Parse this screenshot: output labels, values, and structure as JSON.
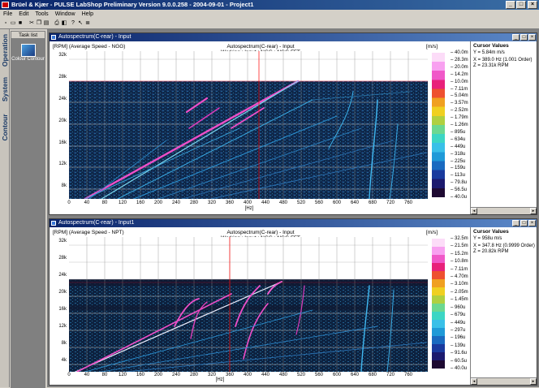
{
  "app": {
    "title": "Brüel & Kjær - PULSE LabShop Preliminary Version 9.0.0.258 - 2004-09-01 - Project1",
    "window_buttons": [
      "_",
      "□",
      "×"
    ]
  },
  "menu": [
    "File",
    "Edit",
    "Tools",
    "Window",
    "Help"
  ],
  "toolbar_icons": [
    "new-icon",
    "open-icon",
    "save-icon",
    "cut-icon",
    "copy-icon",
    "paste-icon",
    "print-icon",
    "print-preview-icon",
    "help-icon",
    "context-help-icon",
    "settings-icon"
  ],
  "left_tabs": [
    "Operation",
    "System",
    "Contour"
  ],
  "task_list": {
    "header": "Task list",
    "item_label": "Colour Contour"
  },
  "colorscale": [
    "#1e0a32",
    "#1c1a6e",
    "#1a3a9e",
    "#1a6ac0",
    "#1f9ad8",
    "#39c0e8",
    "#3cd6c4",
    "#6cd890",
    "#b0d040",
    "#f0d020",
    "#f0a020",
    "#ee5030",
    "#e8207a",
    "#f058c8",
    "#f8a0f0",
    "#fcdcf8"
  ],
  "windows": [
    {
      "title": "Autospectrum(C-rear) - Input",
      "header_left": "[RPM] (Average Speed - NGG)",
      "header_center_1": "Autospectrum(C-rear) - Input",
      "header_center_2": "Working : Input : NGG : NGG FFT",
      "unit": "[m/s]",
      "y_ticks": [
        "32k",
        "28k",
        "24k",
        "20k",
        "16k",
        "12k",
        "8k"
      ],
      "x_ticks": [
        "0",
        "40",
        "80",
        "120",
        "160",
        "200",
        "240",
        "280",
        "320",
        "360",
        "400",
        "440",
        "480",
        "520",
        "560",
        "600",
        "640",
        "680",
        "720",
        "760"
      ],
      "x_unit": "[Hz]",
      "colorbar_labels": [
        "40.0m",
        "28.3m",
        "20.0m",
        "14.2m",
        "10.0m",
        "7.11m",
        "5.04m",
        "3.57m",
        "2.52m",
        "1.79m",
        "1.26m",
        "895u",
        "634u",
        "449u",
        "318u",
        "225u",
        "159u",
        "113u",
        "79.8u",
        "56.5u",
        "40.0u"
      ],
      "cursor": {
        "title": "Cursor Values",
        "lines": [
          "Y = 5.84m m/s",
          "X = 389.0 Hz  (1.001 Order)",
          "Z = 23.31k RPM"
        ]
      }
    },
    {
      "title": "Autospectrum(C-rear) - Input1",
      "header_left": "[RPM] (Average Speed - NPT)",
      "header_center_1": "Autospectrum(C-rear) - Input",
      "header_center_2": "Working : Input : NGG : NGG FFT",
      "unit": "[m/s]",
      "y_ticks": [
        "32k",
        "28k",
        "24k",
        "20k",
        "16k",
        "12k",
        "8k",
        "4k"
      ],
      "x_ticks": [
        "0",
        "40",
        "80",
        "120",
        "160",
        "200",
        "240",
        "280",
        "320",
        "360",
        "400",
        "440",
        "480",
        "520",
        "560",
        "600",
        "640",
        "680",
        "720",
        "760"
      ],
      "x_unit": "[Hz]",
      "colorbar_labels": [
        "32.5m",
        "21.5m",
        "15.2m",
        "10.8m",
        "7.11m",
        "4.70m",
        "3.10m",
        "2.05m",
        "1.45m",
        "960u",
        "679u",
        "449u",
        "297u",
        "196u",
        "139u",
        "91.6u",
        "60.5u",
        "40.0u"
      ],
      "cursor": {
        "title": "Cursor Values",
        "lines": [
          "Y = 958u m/s",
          "X = 347.8 Hz  (0.9999 Order)",
          "Z = 20.82k RPM"
        ]
      }
    }
  ]
}
